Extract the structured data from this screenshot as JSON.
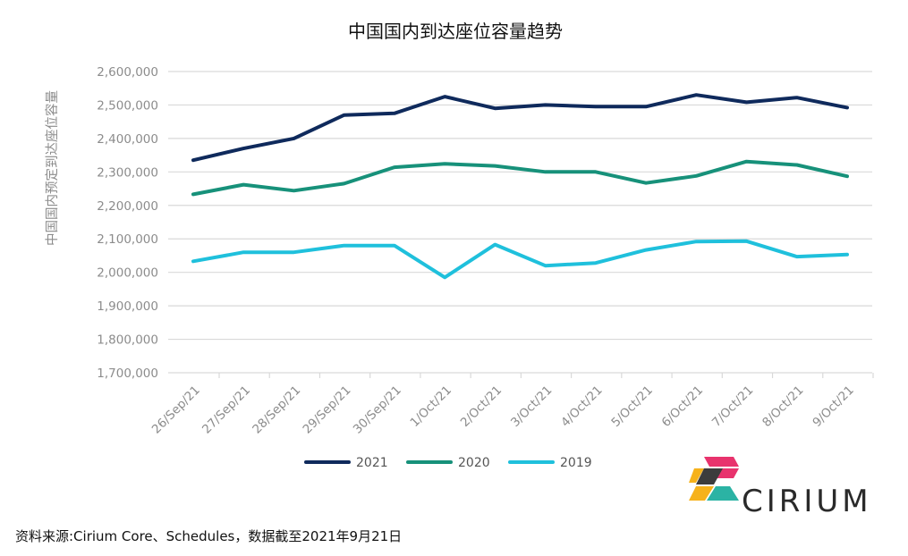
{
  "chart_data": {
    "type": "line",
    "title": "中国国内到达座位容量趋势",
    "ylabel": "中国国内预定到达座位容量",
    "xlabel": "",
    "categories": [
      "26/Sep/21",
      "27/Sep/21",
      "28/Sep/21",
      "29/Sep/21",
      "30/Sep/21",
      "1/Oct/21",
      "2/Oct/21",
      "3/Oct/21",
      "4/Oct/21",
      "5/Oct/21",
      "6/Oct/21",
      "7/Oct/21",
      "8/Oct/21",
      "9/Oct/21"
    ],
    "ylim": [
      1700000,
      2600000
    ],
    "yticks": [
      1700000,
      1800000,
      1900000,
      2000000,
      2100000,
      2200000,
      2300000,
      2400000,
      2500000,
      2600000
    ],
    "ytick_labels": [
      "1,700,000",
      "1,800,000",
      "1,900,000",
      "2,000,000",
      "2,100,000",
      "2,200,000",
      "2,300,000",
      "2,400,000",
      "2,500,000",
      "2,600,000"
    ],
    "grid": true,
    "legend_position": "bottom",
    "series": [
      {
        "name": "2021",
        "color": "#0f2a5c",
        "values": [
          2335000,
          2370000,
          2400000,
          2470000,
          2475000,
          2525000,
          2490000,
          2500000,
          2495000,
          2495000,
          2530000,
          2508000,
          2522000,
          2492000
        ]
      },
      {
        "name": "2020",
        "color": "#17917a",
        "values": [
          2233000,
          2262000,
          2244000,
          2265000,
          2314000,
          2324000,
          2318000,
          2300000,
          2300000,
          2267000,
          2288000,
          2331000,
          2321000,
          2287000
        ]
      },
      {
        "name": "2019",
        "color": "#1fc0dc",
        "values": [
          2033000,
          2060000,
          2060000,
          2080000,
          2080000,
          1985000,
          2083000,
          2020000,
          2028000,
          2067000,
          2092000,
          2093000,
          2047000,
          2053000
        ]
      }
    ]
  },
  "logo": {
    "text": "CIRIUM",
    "colors": [
      "#e8336d",
      "#f6b21b",
      "#3c3c3c",
      "#2bb3a4"
    ]
  },
  "source_note": "资料来源:Cirium Core、Schedules，数据截至2021年9月21日"
}
